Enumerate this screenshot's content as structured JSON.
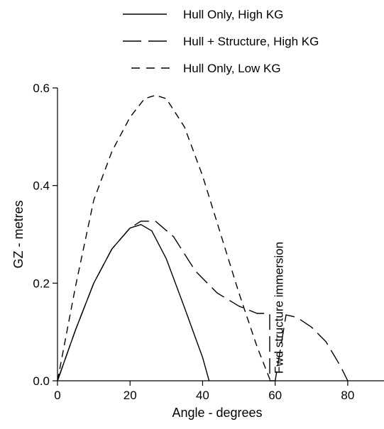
{
  "chart_data": {
    "type": "line",
    "title": "",
    "xlabel": "Angle - degrees",
    "ylabel": "GZ - metres",
    "xlim": [
      0,
      90
    ],
    "ylim": [
      0,
      0.6
    ],
    "x_ticks": [
      0,
      20,
      40,
      60,
      80
    ],
    "y_ticks": [
      0.0,
      0.2,
      0.4,
      0.6
    ],
    "x_tick_labels": [
      "0",
      "20",
      "40",
      "60",
      "80"
    ],
    "y_tick_labels": [
      "0.0",
      "0.2",
      "0.4",
      "0.6"
    ],
    "grid": false,
    "legend": "top",
    "series": [
      {
        "name": "Hull Only, High KG",
        "line_style": "solid",
        "x": [
          0,
          5,
          10,
          15,
          20,
          23,
          26,
          30,
          35,
          40,
          41.8
        ],
        "y": [
          0,
          0.105,
          0.2,
          0.27,
          0.313,
          0.32,
          0.307,
          0.25,
          0.15,
          0.048,
          0
        ]
      },
      {
        "name": "Hull + Structure, High KG",
        "line_style": "long-dash",
        "x": [
          0,
          5,
          10,
          15,
          20,
          23,
          27,
          32,
          38,
          44,
          50,
          55,
          58,
          58.5,
          58.5,
          60,
          63,
          66,
          70,
          74,
          78,
          80
        ],
        "y": [
          0,
          0.105,
          0.2,
          0.27,
          0.313,
          0.327,
          0.327,
          0.295,
          0.225,
          0.18,
          0.153,
          0.138,
          0.138,
          0.138,
          0,
          0,
          0.135,
          0.13,
          0.11,
          0.08,
          0.03,
          0
        ]
      },
      {
        "name": "Hull Only, Low KG",
        "line_style": "short-dash",
        "x": [
          0,
          5,
          10,
          15,
          20,
          24,
          27,
          30,
          35,
          40,
          45,
          50,
          55,
          58.7
        ],
        "y": [
          0,
          0.195,
          0.37,
          0.47,
          0.54,
          0.578,
          0.585,
          0.578,
          0.52,
          0.42,
          0.3,
          0.18,
          0.07,
          0
        ]
      }
    ],
    "annotations": [
      {
        "text": "Fwd structure immersion",
        "x": 60,
        "y": 0.0
      }
    ]
  }
}
